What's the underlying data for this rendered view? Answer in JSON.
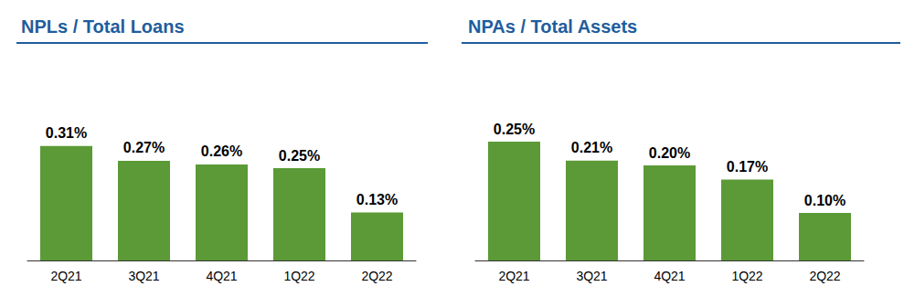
{
  "chart_data": [
    {
      "type": "bar",
      "title": "NPLs / Total Loans",
      "categories": [
        "2Q21",
        "3Q21",
        "4Q21",
        "1Q22",
        "2Q22"
      ],
      "values": [
        0.31,
        0.27,
        0.26,
        0.25,
        0.13
      ],
      "value_labels": [
        "0.31%",
        "0.27%",
        "0.26%",
        "0.25%",
        "0.13%"
      ],
      "color": "#5b9a36",
      "ylim": [
        0,
        0.5
      ],
      "data_labels": true,
      "tick_labels": "x",
      "grid": false
    },
    {
      "type": "bar",
      "title": "NPAs / Total Assets",
      "categories": [
        "2Q21",
        "3Q21",
        "4Q21",
        "1Q22",
        "2Q22"
      ],
      "values": [
        0.25,
        0.21,
        0.2,
        0.17,
        0.1
      ],
      "value_labels": [
        "0.25%",
        "0.21%",
        "0.20%",
        "0.17%",
        "0.10%"
      ],
      "color": "#5b9a36",
      "ylim": [
        0,
        0.45
      ],
      "data_labels": true,
      "tick_labels": "x",
      "grid": false
    }
  ]
}
